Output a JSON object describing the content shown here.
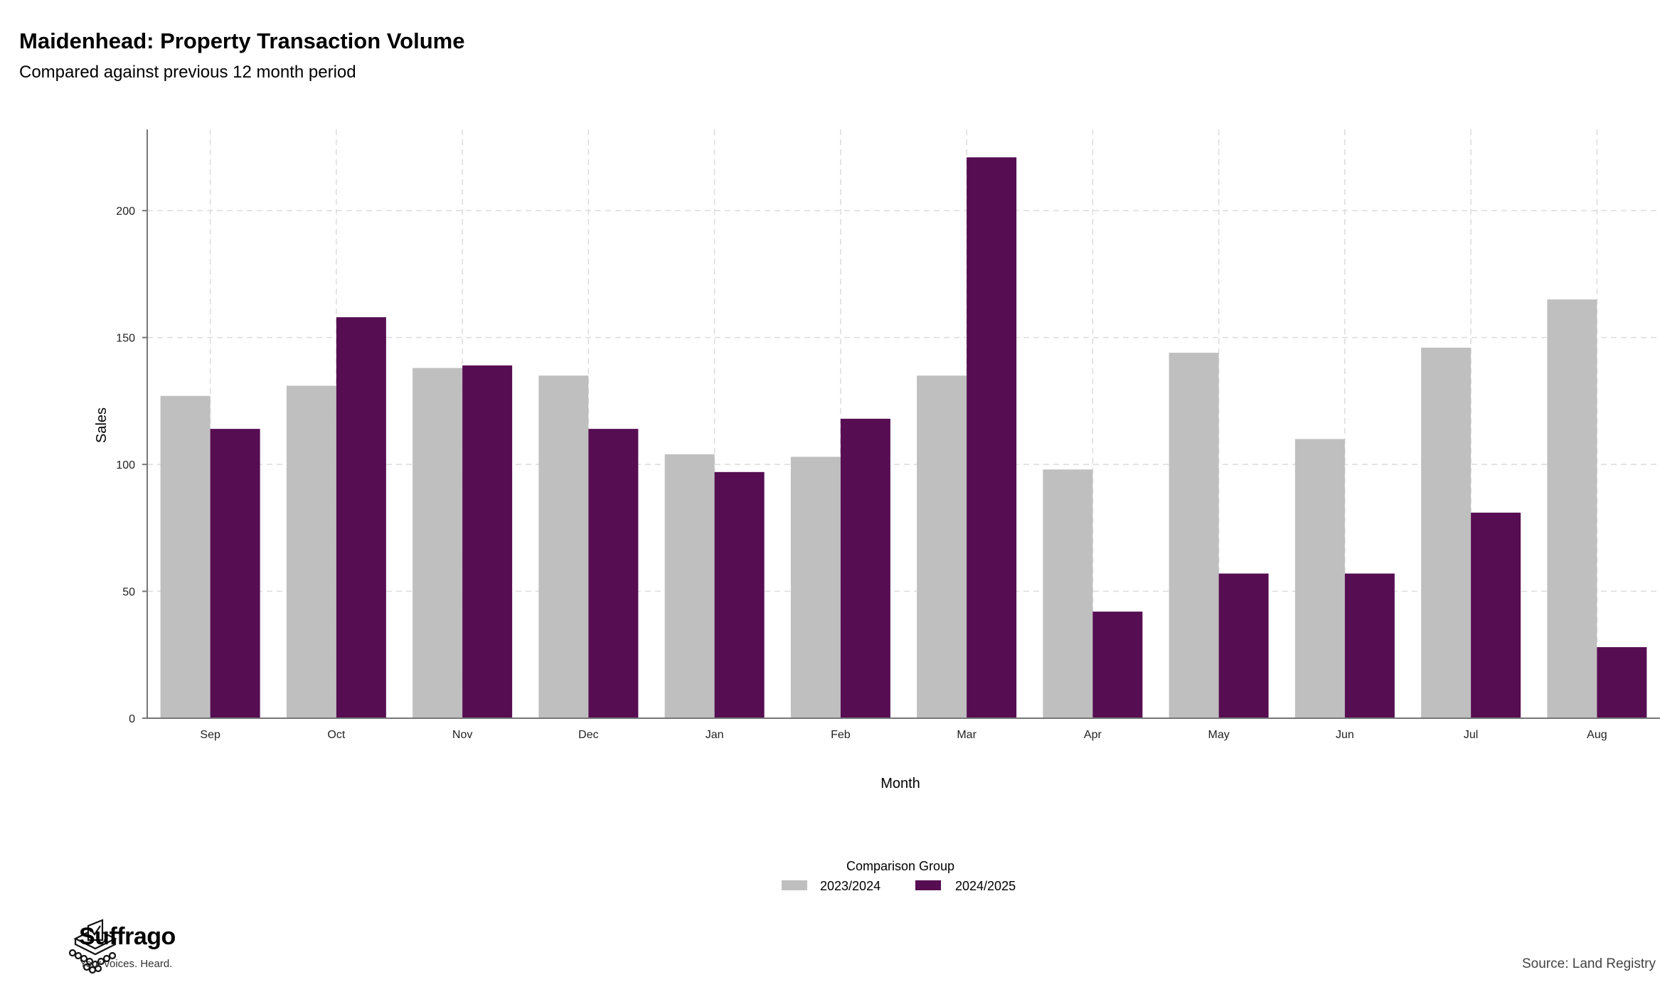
{
  "title": "Maidenhead: Property Transaction Volume",
  "subtitle": "Compared against previous 12 month period",
  "source": "Source: Land Registry",
  "brand": {
    "name": "Suffrago",
    "tagline": "Your voices. Heard."
  },
  "colors": {
    "series_2023_2024": "#bfbfbf",
    "series_2024_2025": "#560d52",
    "grid": "#dcdcdc",
    "axis": "#777777"
  },
  "chart_data": {
    "type": "bar",
    "title": "Maidenhead: Property Transaction Volume",
    "subtitle": "Compared against previous 12 month period",
    "xlabel": "Month",
    "ylabel": "Sales",
    "categories": [
      "Sep",
      "Oct",
      "Nov",
      "Dec",
      "Jan",
      "Feb",
      "Mar",
      "Apr",
      "May",
      "Jun",
      "Jul",
      "Aug"
    ],
    "series": [
      {
        "name": "2023/2024",
        "values": [
          127,
          131,
          138,
          135,
          104,
          103,
          135,
          98,
          144,
          110,
          146,
          165
        ]
      },
      {
        "name": "2024/2025",
        "values": [
          114,
          158,
          139,
          114,
          97,
          118,
          221,
          42,
          57,
          57,
          81,
          28
        ]
      }
    ],
    "ylim": [
      0,
      232
    ],
    "yticks": [
      0,
      50,
      100,
      150,
      200
    ],
    "grid": true,
    "legend": {
      "title": "Comparison Group",
      "placement": "bottom"
    }
  }
}
